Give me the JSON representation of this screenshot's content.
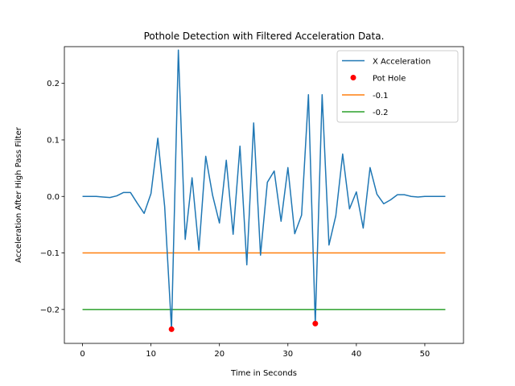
{
  "chart_data": {
    "type": "line",
    "title": "Pothole Detection with Filtered Acceleration Data.",
    "xlabel": "Time in Seconds",
    "ylabel": "Acceleration After High Pass Filter",
    "xlim": [
      -2.65,
      55.65
    ],
    "ylim": [
      -0.26,
      0.265
    ],
    "xticks": [
      0,
      10,
      20,
      30,
      40,
      50
    ],
    "yticks": [
      -0.2,
      -0.1,
      0.0,
      0.1,
      0.2
    ],
    "ytick_labels": [
      "−0.2",
      "−0.1",
      "0.0",
      "0.1",
      "0.2"
    ],
    "legend_position": "upper right",
    "grid": false,
    "series": [
      {
        "name": "X Acceleration",
        "kind": "line",
        "color": "#1f77b4",
        "x": [
          0,
          1,
          2,
          3,
          4,
          5,
          6,
          7,
          8,
          9,
          10,
          11,
          12,
          13,
          14,
          15,
          16,
          17,
          18,
          19,
          20,
          21,
          22,
          23,
          24,
          25,
          26,
          27,
          28,
          29,
          30,
          31,
          32,
          33,
          34,
          35,
          36,
          37,
          38,
          39,
          40,
          41,
          42,
          43,
          44,
          45,
          46,
          47,
          48,
          49,
          50,
          51,
          52,
          53
        ],
        "y": [
          0.0,
          0.0,
          0.0,
          -0.001,
          -0.002,
          0.001,
          0.007,
          0.007,
          -0.012,
          -0.03,
          0.005,
          0.103,
          -0.018,
          -0.235,
          0.259,
          -0.076,
          0.033,
          -0.095,
          0.071,
          0.002,
          -0.047,
          0.064,
          -0.067,
          0.089,
          -0.121,
          0.13,
          -0.104,
          0.025,
          0.045,
          -0.044,
          0.051,
          -0.066,
          -0.033,
          0.18,
          -0.225,
          0.18,
          -0.086,
          -0.034,
          0.075,
          -0.022,
          0.008,
          -0.056,
          0.051,
          0.004,
          -0.013,
          -0.006,
          0.003,
          0.003,
          0.0,
          -0.001,
          0.0,
          0.0,
          0.0,
          0.0
        ]
      },
      {
        "name": "Pot Hole",
        "kind": "scatter",
        "color": "#ff0000",
        "x": [
          13,
          34
        ],
        "y": [
          -0.235,
          -0.225
        ]
      },
      {
        "name": "-0.1",
        "kind": "line",
        "color": "#ff7f0e",
        "x": [
          0,
          53
        ],
        "y": [
          -0.1,
          -0.1
        ]
      },
      {
        "name": "-0.2",
        "kind": "line",
        "color": "#2ca02c",
        "x": [
          0,
          53
        ],
        "y": [
          -0.2,
          -0.2
        ]
      }
    ]
  }
}
